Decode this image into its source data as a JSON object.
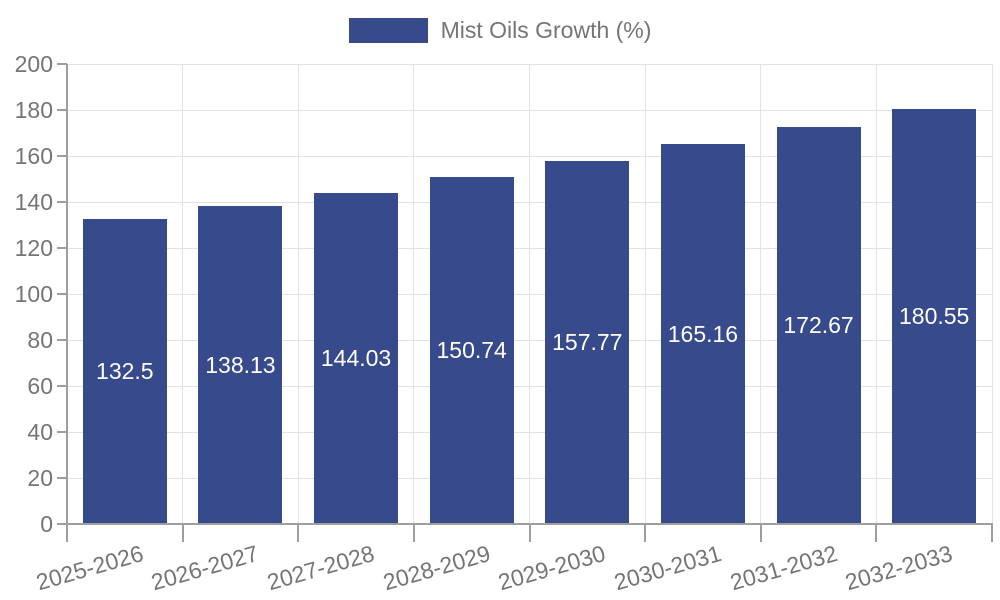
{
  "chart": {
    "legend": {
      "label": "Mist Oils Growth (%)"
    },
    "colors": {
      "bar": "#374a8b",
      "value_text": "#ffffff",
      "axis": "#9e9e9e",
      "grid": "#e3e3e3",
      "tick_text": "#757575"
    }
  },
  "chart_data": {
    "type": "bar",
    "title": "",
    "xlabel": "",
    "ylabel": "",
    "categories": [
      "2025-2026",
      "2026-2027",
      "2027-2028",
      "2028-2029",
      "2029-2030",
      "2030-2031",
      "2031-2032",
      "2032-2033"
    ],
    "values": [
      132.5,
      138.13,
      144.03,
      150.74,
      157.77,
      165.16,
      172.67,
      180.55
    ],
    "value_labels": [
      "132.5",
      "138.13",
      "144.03",
      "150.74",
      "157.77",
      "165.16",
      "172.67",
      "180.55"
    ],
    "series_name": "Mist Oils Growth (%)",
    "legend_entries": [
      "Mist Oils Growth (%)"
    ],
    "legend_position": "top-center",
    "ylim": [
      0,
      200
    ],
    "ytick_step": 20,
    "grid": true,
    "value_labels_inside": true,
    "xtick_rotation_deg": -16
  }
}
